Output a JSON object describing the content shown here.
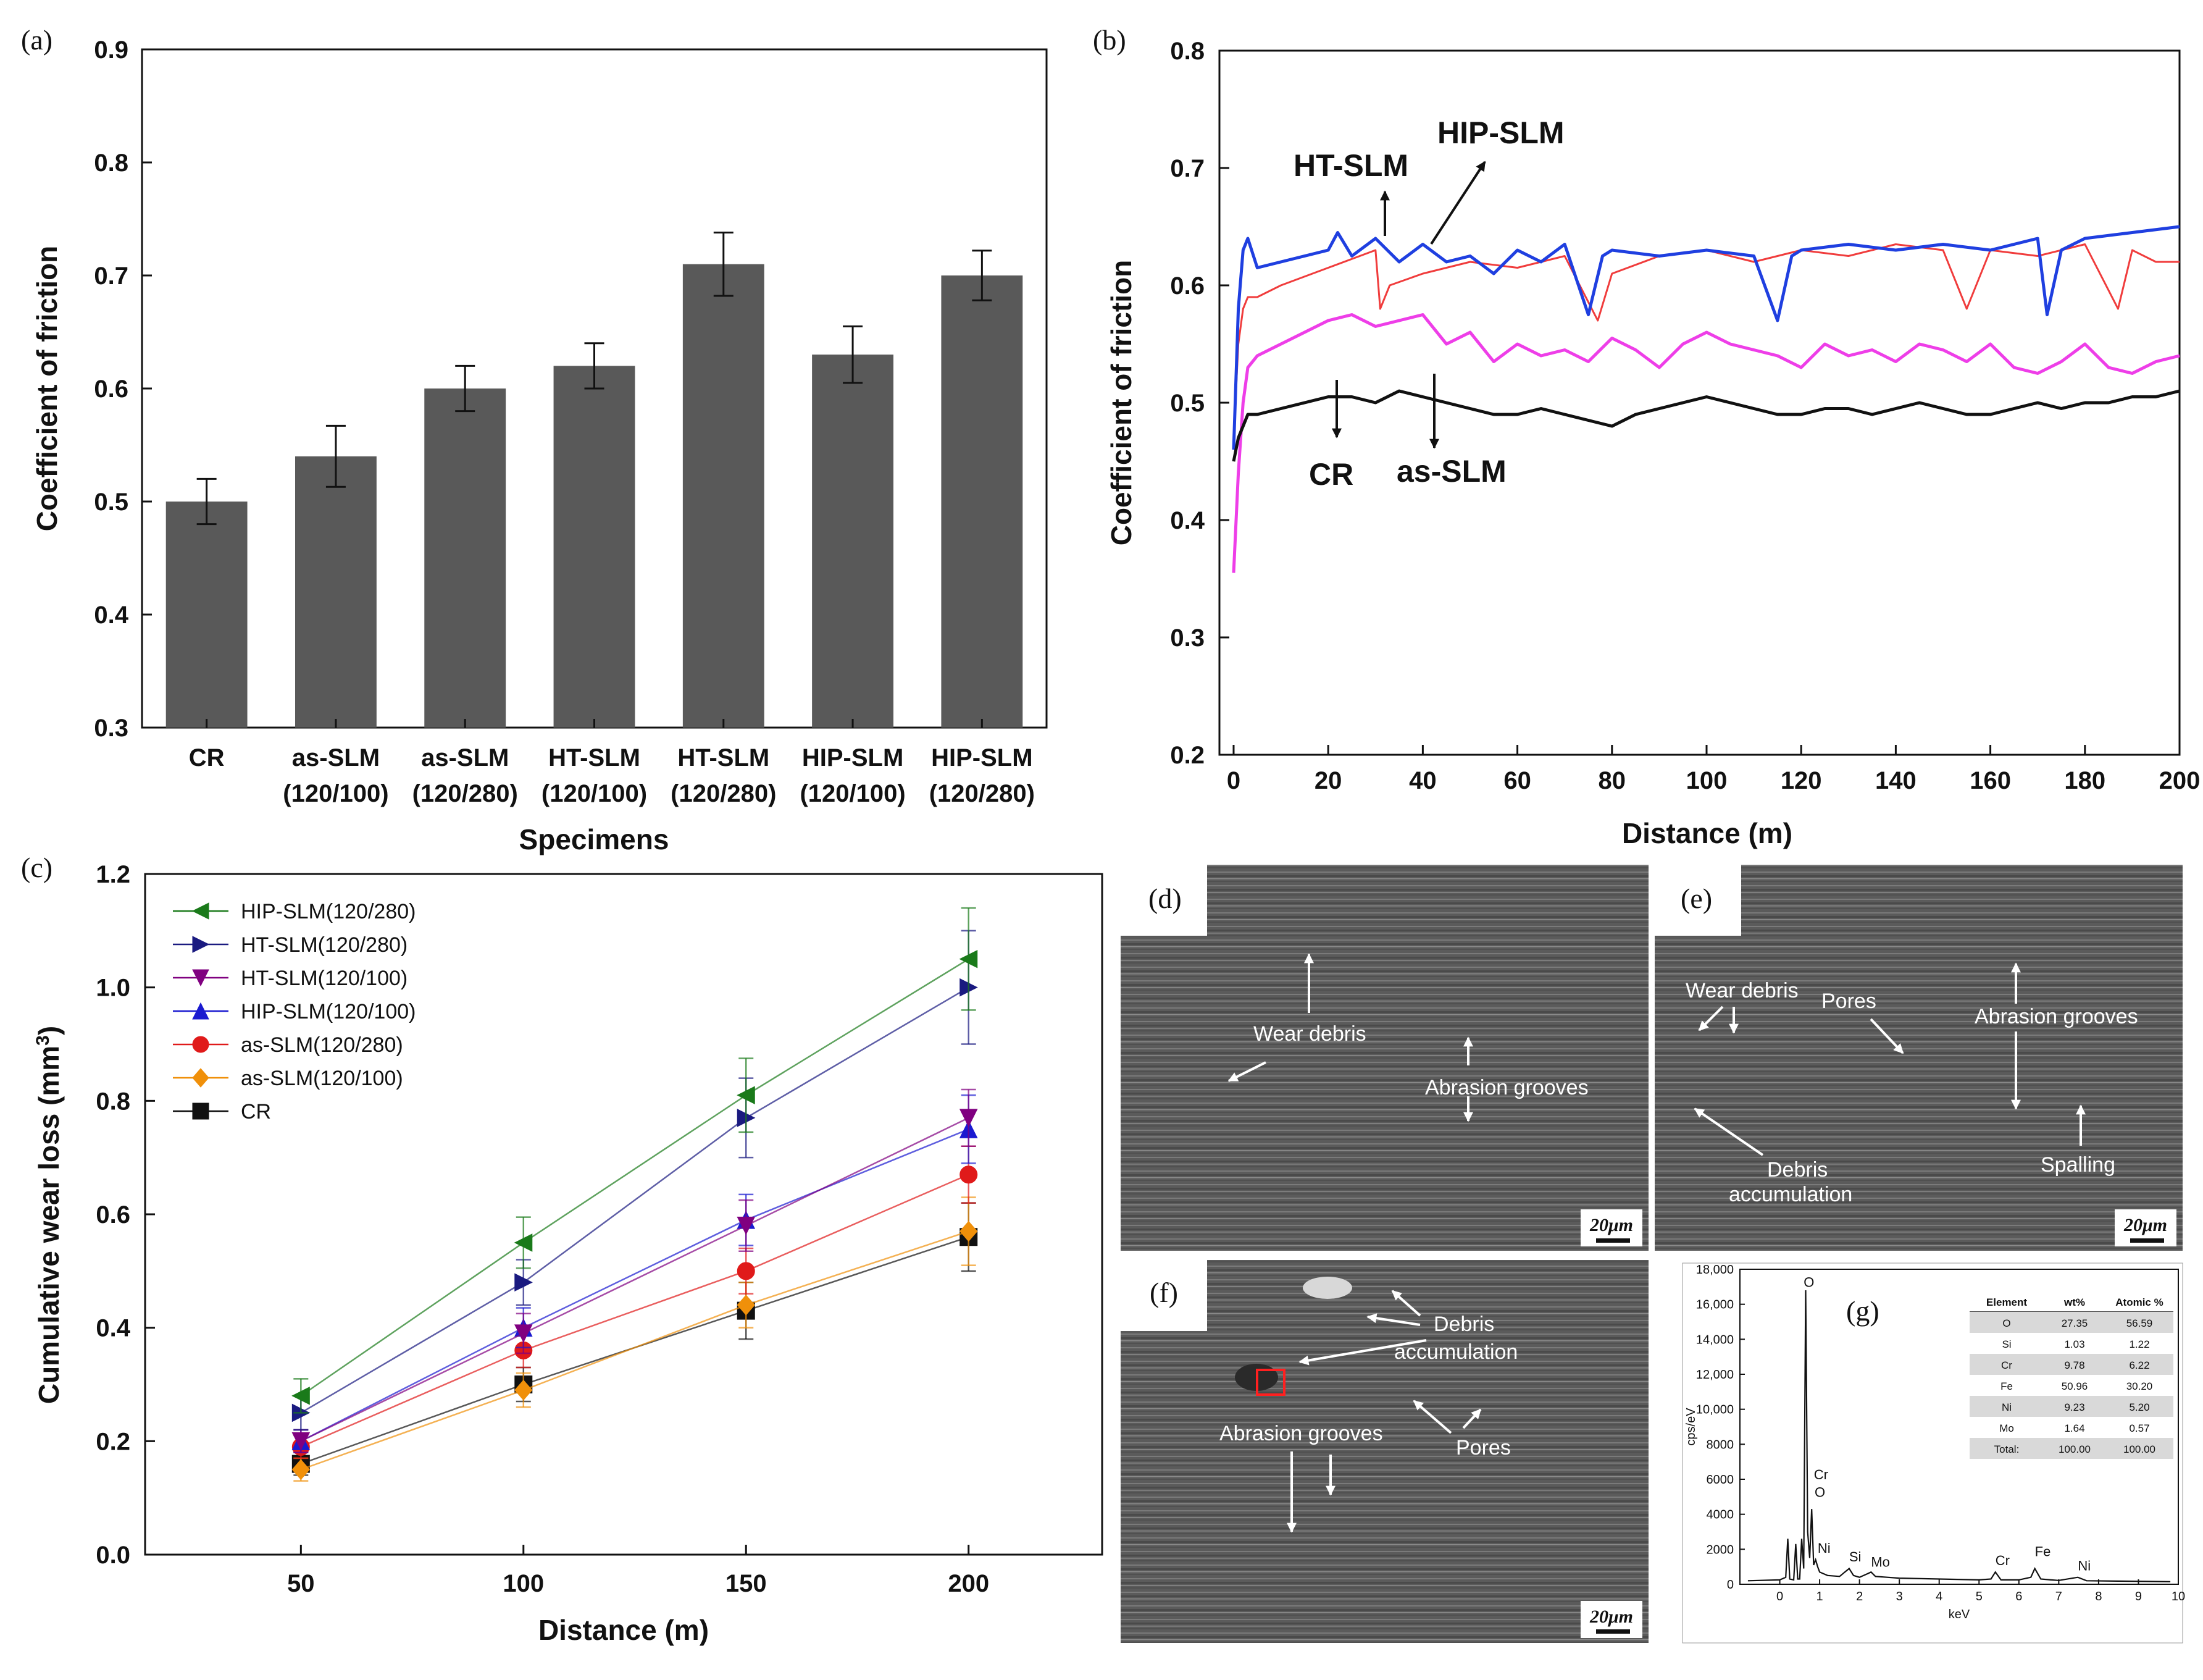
{
  "panels": {
    "a": "(a)",
    "b": "(b)",
    "c": "(c)",
    "d": "(d)",
    "e": "(e)",
    "f": "(f)",
    "g": "(g)"
  },
  "chart_data": [
    {
      "panel": "a",
      "type": "bar",
      "categories": [
        [
          "CR"
        ],
        [
          "as-SLM",
          "(120/100)"
        ],
        [
          "as-SLM",
          "(120/280)"
        ],
        [
          "HT-SLM",
          "(120/100)"
        ],
        [
          "HT-SLM",
          "(120/280)"
        ],
        [
          "HIP-SLM",
          "(120/100)"
        ],
        [
          "HIP-SLM",
          "(120/280)"
        ]
      ],
      "values": [
        0.5,
        0.54,
        0.6,
        0.62,
        0.71,
        0.63,
        0.7
      ],
      "errors": [
        0.02,
        0.027,
        0.02,
        0.02,
        0.028,
        0.025,
        0.022
      ],
      "xlabel": "Specimens",
      "ylabel": "Coefficient of friction",
      "ylim": [
        0.3,
        0.9
      ],
      "yticks": [
        "0.3",
        "0.4",
        "0.5",
        "0.6",
        "0.7",
        "0.8",
        "0.9"
      ],
      "bar_color": "#595959"
    },
    {
      "panel": "b",
      "type": "line",
      "xlabel": "Distance (m)",
      "ylabel": "Coefficient of friction",
      "xlim": [
        -3,
        200
      ],
      "ylim": [
        0.2,
        0.8
      ],
      "xticks": [
        "0",
        "20",
        "40",
        "60",
        "80",
        "100",
        "120",
        "140",
        "160",
        "180",
        "200"
      ],
      "yticks": [
        "0.2",
        "0.3",
        "0.4",
        "0.5",
        "0.6",
        "0.7",
        "0.8"
      ],
      "series": [
        {
          "color": "#f03c3c",
          "x": [
            0,
            1,
            2,
            3,
            5,
            10,
            20,
            30,
            31,
            33,
            40,
            50,
            60,
            70,
            77,
            80,
            90,
            100,
            110,
            120,
            130,
            140,
            150,
            155,
            160,
            170,
            180,
            187,
            190,
            195,
            200
          ],
          "y": [
            0.47,
            0.55,
            0.58,
            0.59,
            0.59,
            0.6,
            0.615,
            0.63,
            0.58,
            0.6,
            0.61,
            0.62,
            0.615,
            0.625,
            0.57,
            0.61,
            0.625,
            0.63,
            0.62,
            0.63,
            0.625,
            0.635,
            0.63,
            0.58,
            0.63,
            0.625,
            0.635,
            0.58,
            0.63,
            0.62,
            0.62
          ]
        },
        {
          "color": "#1f3fe0",
          "x": [
            0,
            1,
            2,
            3,
            5,
            10,
            20,
            22,
            25,
            30,
            35,
            40,
            45,
            50,
            55,
            60,
            65,
            70,
            75,
            78,
            80,
            90,
            100,
            110,
            115,
            118,
            120,
            130,
            140,
            150,
            160,
            170,
            172,
            175,
            180,
            190,
            200
          ],
          "y": [
            0.46,
            0.58,
            0.63,
            0.64,
            0.615,
            0.62,
            0.63,
            0.645,
            0.625,
            0.64,
            0.62,
            0.635,
            0.62,
            0.625,
            0.61,
            0.63,
            0.62,
            0.635,
            0.575,
            0.625,
            0.63,
            0.625,
            0.63,
            0.625,
            0.57,
            0.625,
            0.63,
            0.635,
            0.63,
            0.635,
            0.63,
            0.64,
            0.575,
            0.63,
            0.64,
            0.645,
            0.65
          ]
        },
        {
          "color": "#ee3ee8",
          "x": [
            0,
            1,
            2,
            3,
            5,
            10,
            15,
            20,
            25,
            30,
            35,
            40,
            45,
            50,
            55,
            60,
            65,
            70,
            75,
            80,
            85,
            90,
            95,
            100,
            105,
            110,
            115,
            120,
            125,
            130,
            135,
            140,
            145,
            150,
            155,
            160,
            165,
            170,
            175,
            180,
            185,
            190,
            195,
            200
          ],
          "y": [
            0.355,
            0.44,
            0.5,
            0.53,
            0.54,
            0.55,
            0.56,
            0.57,
            0.575,
            0.565,
            0.57,
            0.575,
            0.55,
            0.56,
            0.535,
            0.55,
            0.54,
            0.545,
            0.535,
            0.555,
            0.545,
            0.53,
            0.55,
            0.56,
            0.55,
            0.545,
            0.54,
            0.53,
            0.55,
            0.54,
            0.545,
            0.535,
            0.55,
            0.545,
            0.535,
            0.55,
            0.53,
            0.525,
            0.535,
            0.55,
            0.53,
            0.525,
            0.535,
            0.54
          ]
        },
        {
          "color": "#111111",
          "x": [
            0,
            1,
            2,
            3,
            5,
            10,
            15,
            20,
            25,
            30,
            35,
            40,
            45,
            50,
            55,
            60,
            65,
            70,
            75,
            80,
            85,
            90,
            95,
            100,
            105,
            110,
            115,
            120,
            125,
            130,
            135,
            140,
            145,
            150,
            155,
            160,
            165,
            170,
            175,
            180,
            185,
            190,
            195,
            200
          ],
          "y": [
            0.45,
            0.47,
            0.48,
            0.49,
            0.49,
            0.495,
            0.5,
            0.505,
            0.505,
            0.5,
            0.51,
            0.505,
            0.5,
            0.495,
            0.49,
            0.49,
            0.495,
            0.49,
            0.485,
            0.48,
            0.49,
            0.495,
            0.5,
            0.505,
            0.5,
            0.495,
            0.49,
            0.49,
            0.495,
            0.495,
            0.49,
            0.495,
            0.5,
            0.495,
            0.49,
            0.49,
            0.495,
            0.5,
            0.495,
            0.5,
            0.5,
            0.505,
            0.505,
            0.51
          ]
        }
      ],
      "annotations": [
        {
          "text": "HIP-SLM"
        },
        {
          "text": "HT-SLM"
        },
        {
          "text": "CR"
        },
        {
          "text": "as-SLM"
        }
      ]
    },
    {
      "panel": "c",
      "type": "line",
      "xlabel": "Distance (m)",
      "ylabel": "Cumulative wear loss (mm",
      "ylabel_sup": "3",
      "ylabel_close": ")",
      "xlim": [
        15,
        230
      ],
      "ylim": [
        0.0,
        1.2
      ],
      "xticks": [
        "50",
        "100",
        "150",
        "200"
      ],
      "yticks": [
        "0.0",
        "0.2",
        "0.4",
        "0.6",
        "0.8",
        "1.0",
        "1.2"
      ],
      "x": [
        50,
        100,
        150,
        200
      ],
      "series": [
        {
          "name": "HIP-SLM(120/280)",
          "color": "#1a7a1a",
          "marker": "tri-left",
          "values": [
            0.28,
            0.55,
            0.81,
            1.05
          ],
          "errors": [
            0.03,
            0.045,
            0.065,
            0.09
          ]
        },
        {
          "name": "HT-SLM(120/280)",
          "color": "#1a1a80",
          "marker": "tri-right",
          "values": [
            0.25,
            0.48,
            0.77,
            1.0
          ],
          "errors": [
            0.03,
            0.04,
            0.07,
            0.1
          ]
        },
        {
          "name": "HT-SLM(120/100)",
          "color": "#800080",
          "marker": "tri-down",
          "values": [
            0.2,
            0.39,
            0.58,
            0.77
          ],
          "errors": [
            0.02,
            0.035,
            0.045,
            0.05
          ]
        },
        {
          "name": "HIP-SLM(120/100)",
          "color": "#1a1ad0",
          "marker": "tri-up",
          "values": [
            0.2,
            0.4,
            0.59,
            0.75
          ],
          "errors": [
            0.02,
            0.035,
            0.045,
            0.06
          ]
        },
        {
          "name": "as-SLM(120/280)",
          "color": "#e01a1a",
          "marker": "circle",
          "values": [
            0.19,
            0.36,
            0.5,
            0.67
          ],
          "errors": [
            0.02,
            0.03,
            0.04,
            0.05
          ]
        },
        {
          "name": "as-SLM(120/100)",
          "color": "#f0900a",
          "marker": "diamond",
          "values": [
            0.15,
            0.29,
            0.44,
            0.57
          ],
          "errors": [
            0.02,
            0.03,
            0.04,
            0.06
          ]
        },
        {
          "name": "CR",
          "color": "#111111",
          "marker": "square",
          "values": [
            0.16,
            0.3,
            0.43,
            0.56
          ],
          "errors": [
            0.02,
            0.03,
            0.05,
            0.06
          ]
        }
      ]
    },
    {
      "panel": "g",
      "type": "line",
      "xlabel": "keV",
      "ylabel": "cps/eV",
      "xlim": [
        -1,
        10
      ],
      "ylim": [
        0,
        18000
      ],
      "xticks": [
        "0",
        "1",
        "2",
        "3",
        "4",
        "5",
        "6",
        "7",
        "8",
        "9",
        "10"
      ],
      "yticks": [
        "0",
        "2000",
        "4000",
        "6000",
        "8000",
        "10,000",
        "12,000",
        "14,000",
        "16,000",
        "18,000"
      ],
      "x": [
        -0.8,
        0.0,
        0.15,
        0.2,
        0.25,
        0.35,
        0.4,
        0.45,
        0.5,
        0.55,
        0.6,
        0.65,
        0.7,
        0.75,
        0.8,
        0.85,
        0.9,
        0.95,
        1.0,
        1.2,
        1.5,
        1.74,
        1.85,
        2.0,
        2.2,
        2.29,
        2.4,
        3.0,
        4.0,
        5.0,
        5.3,
        5.41,
        5.55,
        6.0,
        6.3,
        6.4,
        6.55,
        6.8,
        7.0,
        7.48,
        7.7,
        8.5,
        9.8
      ],
      "values": [
        200,
        250,
        400,
        2600,
        300,
        250,
        2300,
        300,
        300,
        2600,
        900,
        16800,
        3000,
        1500,
        4300,
        1100,
        1400,
        1000,
        700,
        500,
        450,
        900,
        500,
        400,
        600,
        700,
        450,
        350,
        300,
        250,
        300,
        700,
        250,
        250,
        400,
        900,
        300,
        250,
        220,
        400,
        200,
        180,
        150
      ],
      "peaks": [
        {
          "text": "O",
          "x": 0.6,
          "y": 17000
        },
        {
          "text": "Cr",
          "x": 0.7,
          "y": 6000
        },
        {
          "text": "O",
          "x": 0.72,
          "y": 5000
        },
        {
          "text": "Ni",
          "x": 0.95,
          "y": 1800
        },
        {
          "text": "Si",
          "x": 1.74,
          "y": 1300
        },
        {
          "text": "Mo",
          "x": 2.29,
          "y": 1000
        },
        {
          "text": "Cr",
          "x": 5.41,
          "y": 1100
        },
        {
          "text": "Fe",
          "x": 6.4,
          "y": 1600
        },
        {
          "text": "Ni",
          "x": 7.48,
          "y": 800
        }
      ],
      "table": {
        "headers": [
          "Element",
          "wt%",
          "Atomic %"
        ],
        "rows": [
          [
            "O",
            "27.35",
            "56.59"
          ],
          [
            "Si",
            "1.03",
            "1.22"
          ],
          [
            "Cr",
            "9.78",
            "6.22"
          ],
          [
            "Fe",
            "50.96",
            "30.20"
          ],
          [
            "Ni",
            "9.23",
            "5.20"
          ],
          [
            "Mo",
            "1.64",
            "0.57"
          ],
          [
            "Total:",
            "100.00",
            "100.00"
          ]
        ]
      }
    }
  ],
  "sem": {
    "d": {
      "labels": [
        "Wear debris",
        "Abrasion grooves"
      ],
      "scale": "20μm"
    },
    "e": {
      "labels": [
        "Wear debris",
        "Pores",
        "Abrasion grooves",
        "Debris",
        "accumulation",
        "Spalling"
      ],
      "scale": "20μm"
    },
    "f": {
      "labels": [
        "Debris",
        "accumulation",
        "Abrasion grooves",
        "Pores"
      ],
      "scale": "20μm"
    }
  }
}
